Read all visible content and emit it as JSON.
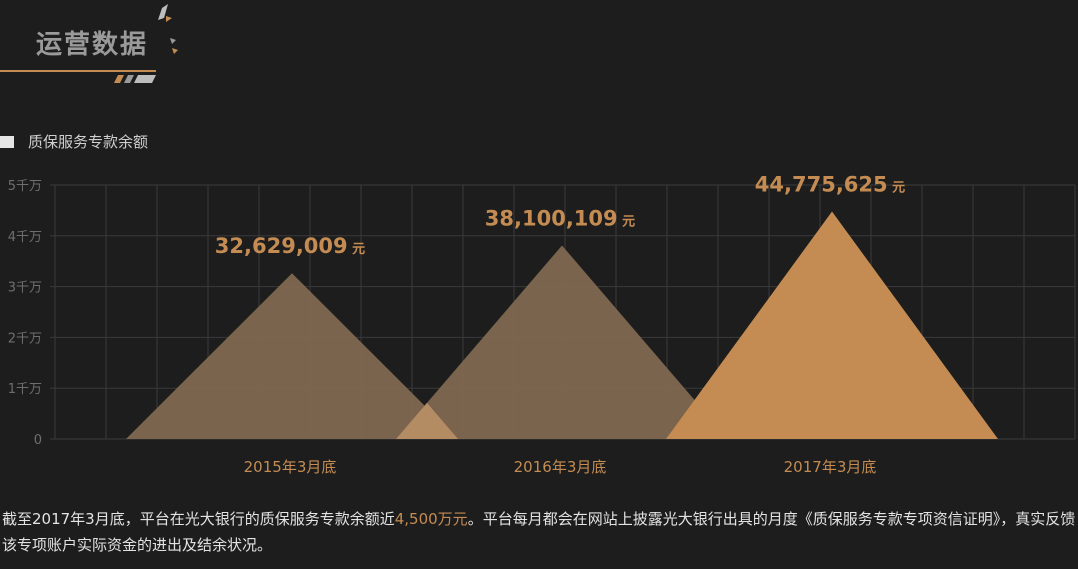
{
  "header": {
    "title": "运营数据"
  },
  "legend": {
    "label": "质保服务专款余额"
  },
  "colors": {
    "background": "#1d1d1d",
    "accent": "#c48c52",
    "muted_triangle": "#7f6850",
    "grid": "#3a3a3a"
  },
  "chart_data": {
    "type": "area",
    "title": "",
    "series_name": "质保服务专款余额",
    "categories": [
      "2015年3月底",
      "2016年3月底",
      "2017年3月底"
    ],
    "values": [
      32629009,
      38100109,
      44775625
    ],
    "value_labels": [
      "32,629,009",
      "38,100,109",
      "44,775,625"
    ],
    "unit": "元",
    "ylim": [
      0,
      50000000
    ],
    "y_ticks": [
      "0",
      "1千万",
      "2千万",
      "3千万",
      "4千万",
      "5千万"
    ],
    "grid": true,
    "highlight_index": 2
  },
  "description": {
    "part1": "截至2017年3月底，平台在光大银行的质保服务专款余额近",
    "highlight": "4,500万元",
    "part2": "。平台每月都会在网站上披露光大银行出具的月度《质保服务专款专项资信证明》，真实反馈该专项账户实际资金的进出及结余状况。"
  }
}
